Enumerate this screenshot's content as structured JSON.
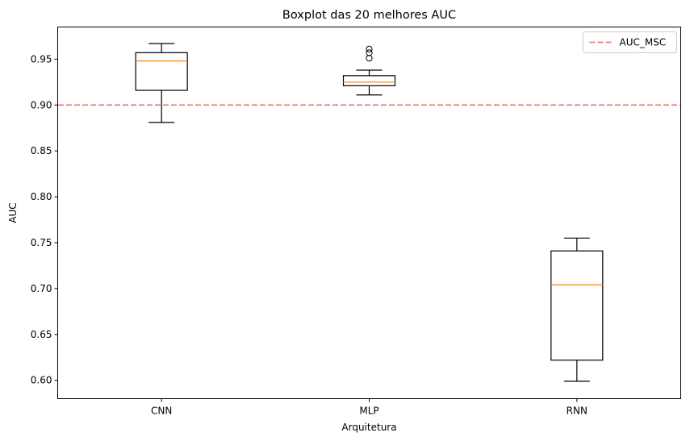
{
  "chart_data": {
    "type": "boxplot",
    "title": "Boxplot das 20 melhores AUC",
    "xlabel": "Arquitetura",
    "ylabel": "AUC",
    "categories": [
      "CNN",
      "MLP",
      "RNN"
    ],
    "ylim": [
      0.58,
      0.985
    ],
    "yticks": [
      0.6,
      0.65,
      0.7,
      0.75,
      0.8,
      0.85,
      0.9,
      0.95
    ],
    "ytick_labels": [
      "0.60",
      "0.65",
      "0.70",
      "0.75",
      "0.80",
      "0.85",
      "0.90",
      "0.95"
    ],
    "boxes": [
      {
        "label": "CNN",
        "whisker_low": 0.881,
        "q1": 0.916,
        "median": 0.948,
        "q3": 0.957,
        "whisker_high": 0.967,
        "outliers": []
      },
      {
        "label": "MLP",
        "whisker_low": 0.911,
        "q1": 0.921,
        "median": 0.925,
        "q3": 0.932,
        "whisker_high": 0.938,
        "outliers": [
          0.951,
          0.957,
          0.961
        ]
      },
      {
        "label": "RNN",
        "whisker_low": 0.599,
        "q1": 0.622,
        "median": 0.704,
        "q3": 0.741,
        "whisker_high": 0.755,
        "outliers": []
      }
    ],
    "reference_line": {
      "name": "AUC_MSC",
      "value": 0.9,
      "color": "#f08080",
      "style": "dashed"
    },
    "legend": {
      "placement": "top-right",
      "entries": [
        "AUC_MSC"
      ]
    },
    "colors": {
      "box": "#000000",
      "median": "#ff7f0e",
      "reference": "#f08080"
    },
    "grid": false
  }
}
